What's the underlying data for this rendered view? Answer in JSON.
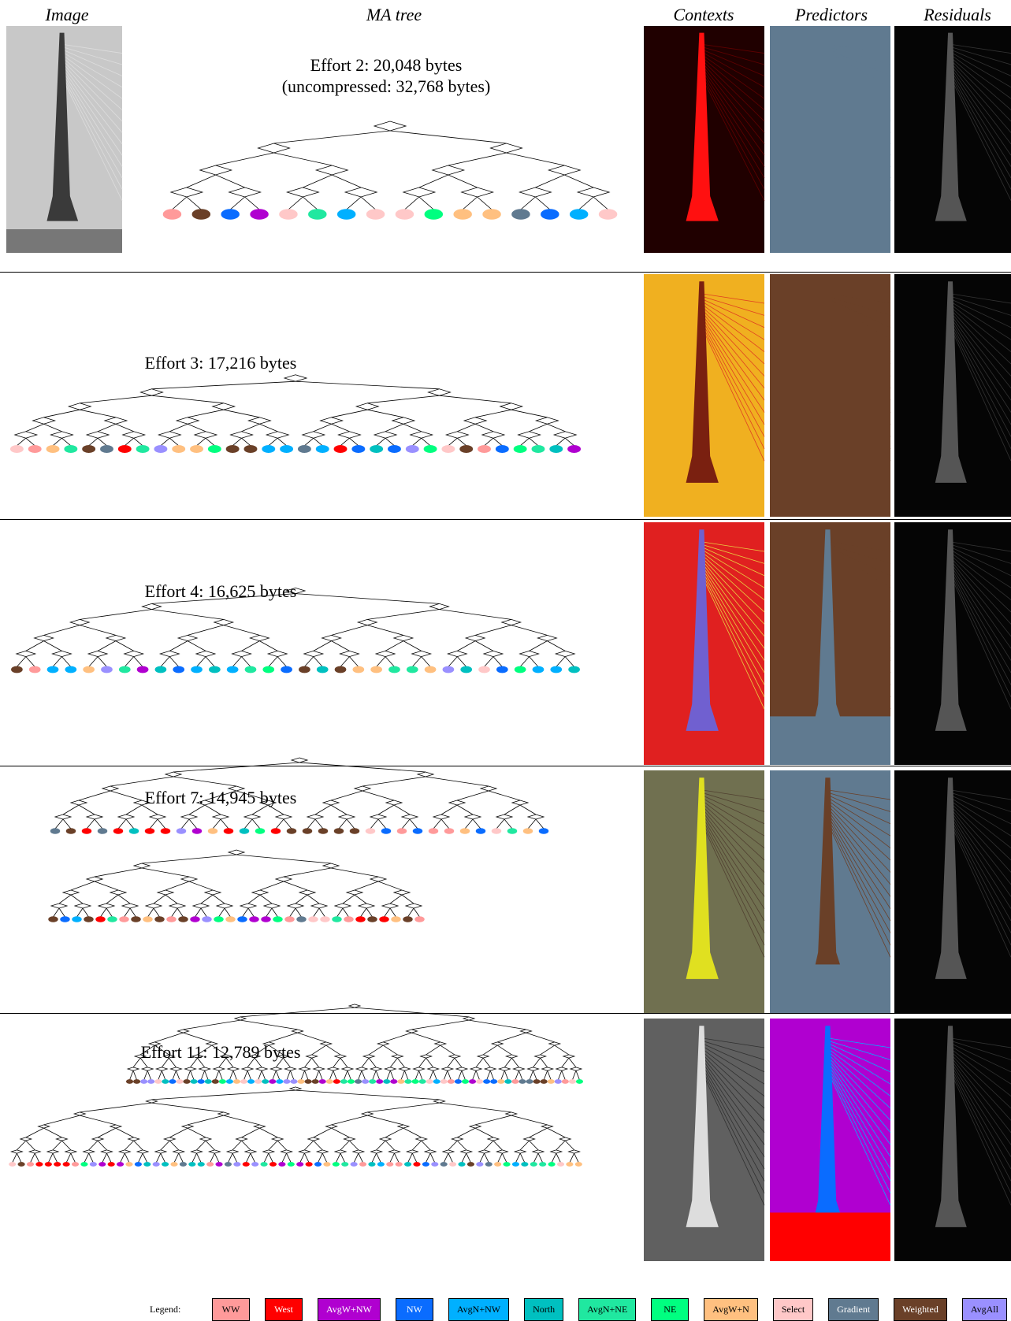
{
  "header": {
    "columns": [
      "Image",
      "MA tree",
      "Contexts",
      "Predictors",
      "Residuals"
    ]
  },
  "rows": [
    {
      "caption": "Effort 2: 20,048 bytes",
      "note": "(uncompressed: 32,768 bytes)"
    },
    {
      "caption": "Effort 3: 17,216 bytes"
    },
    {
      "caption": "Effort 4: 16,625 bytes"
    },
    {
      "caption": "Effort 7: 14,945 bytes"
    },
    {
      "caption": "Effort 11: 12,789 bytes"
    }
  ],
  "legend": {
    "title": "Legend:",
    "items": [
      {
        "label": "WW",
        "color": "#ff9a9a"
      },
      {
        "label": "West",
        "color": "#ff0000"
      },
      {
        "label": "AvgW+NW",
        "color": "#b000d0"
      },
      {
        "label": "NW",
        "color": "#0a6cff"
      },
      {
        "label": "AvgN+NW",
        "color": "#00b0ff"
      },
      {
        "label": "North",
        "color": "#00c0c0"
      },
      {
        "label": "AvgN+NE",
        "color": "#20e8a0"
      },
      {
        "label": "NE",
        "color": "#00ff80"
      },
      {
        "label": "AvgW+N",
        "color": "#ffc080"
      },
      {
        "label": "Select",
        "color": "#ffc8c8"
      },
      {
        "label": "Gradient",
        "color": "#607a90"
      },
      {
        "label": "Weighted",
        "color": "#6a4028"
      },
      {
        "label": "AvgAll",
        "color": "#9a90ff"
      }
    ]
  }
}
